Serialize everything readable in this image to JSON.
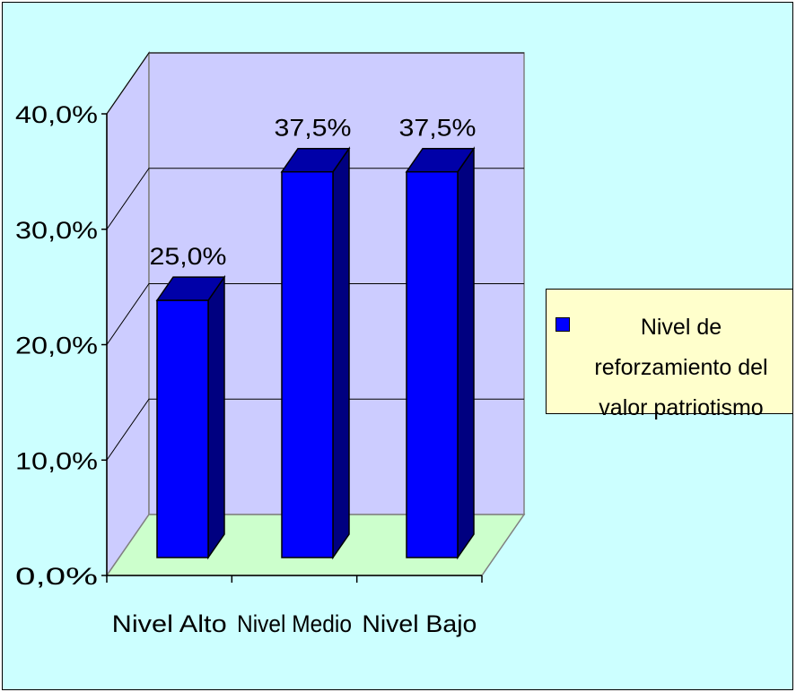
{
  "chart_data": {
    "type": "bar",
    "style": "3d-column",
    "categories": [
      "Nivel Alto",
      "Nivel Medio",
      "Nivel Bajo"
    ],
    "series": [
      {
        "name": "Nivel de reforzamiento del valor patriotismo",
        "values": [
          25.0,
          37.5,
          37.5
        ]
      }
    ],
    "data_labels": [
      "25,0%",
      "37,5%",
      "37,5%"
    ],
    "y_ticks": [
      "0,0%",
      "10,0%",
      "20,0%",
      "30,0%",
      "40,0%"
    ],
    "ylim": [
      0,
      40
    ],
    "grid": true,
    "legend_position": "right",
    "colors": {
      "bar_front": "#0000ff",
      "bar_top": "#0000a8",
      "bar_side": "#000080",
      "back_wall": "#ccccff",
      "side_wall": "#ccccff",
      "floor": "#ccffcc",
      "chart_area": "#ccffff",
      "legend_bg": "#ffffcc"
    }
  }
}
